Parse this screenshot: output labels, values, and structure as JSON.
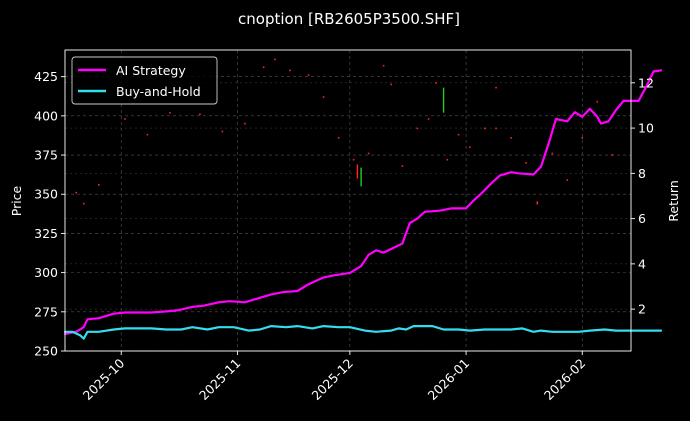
{
  "chart_data": {
    "type": "line",
    "title": "cnoption [RB2605P3500.SHF]",
    "ylabel_left": "Price",
    "ylabel_right": "Return",
    "ylim_left": [
      250,
      442
    ],
    "ylim_right": [
      0.15,
      13.45
    ],
    "xlim": [
      "2025-09-16",
      "2026-02-14"
    ],
    "yticks_left": [
      250,
      275,
      300,
      325,
      350,
      375,
      400,
      425
    ],
    "yticks_right": [
      2,
      4,
      6,
      8,
      10,
      12
    ],
    "xticks": [
      {
        "date": "2025-10-01",
        "label": "2025-10"
      },
      {
        "date": "2025-11-01",
        "label": "2025-11"
      },
      {
        "date": "2025-12-01",
        "label": "2025-12"
      },
      {
        "date": "2026-01-01",
        "label": "2026-01"
      },
      {
        "date": "2026-02-01",
        "label": "2026-02"
      }
    ],
    "grid": true,
    "legend_position": "top-left",
    "series": [
      {
        "name": "AI Strategy",
        "axis": "right",
        "color": "#ff00ff",
        "points": [
          [
            "2025-09-16",
            0.9
          ],
          [
            "2025-09-19",
            1.0
          ],
          [
            "2025-09-21",
            1.2
          ],
          [
            "2025-09-22",
            1.55
          ],
          [
            "2025-09-25",
            1.6
          ],
          [
            "2025-09-29",
            1.8
          ],
          [
            "2025-10-02",
            1.85
          ],
          [
            "2025-10-09",
            1.85
          ],
          [
            "2025-10-13",
            1.9
          ],
          [
            "2025-10-16",
            1.95
          ],
          [
            "2025-10-20",
            2.1
          ],
          [
            "2025-10-23",
            2.15
          ],
          [
            "2025-10-27",
            2.3
          ],
          [
            "2025-10-30",
            2.35
          ],
          [
            "2025-11-03",
            2.3
          ],
          [
            "2025-11-06",
            2.45
          ],
          [
            "2025-11-10",
            2.65
          ],
          [
            "2025-11-13",
            2.75
          ],
          [
            "2025-11-17",
            2.8
          ],
          [
            "2025-11-20",
            3.1
          ],
          [
            "2025-11-24",
            3.4
          ],
          [
            "2025-11-27",
            3.5
          ],
          [
            "2025-12-01",
            3.6
          ],
          [
            "2025-12-04",
            3.9
          ],
          [
            "2025-12-06",
            4.4
          ],
          [
            "2025-12-08",
            4.6
          ],
          [
            "2025-12-10",
            4.5
          ],
          [
            "2025-12-15",
            4.9
          ],
          [
            "2025-12-17",
            5.8
          ],
          [
            "2025-12-19",
            6.0
          ],
          [
            "2025-12-21",
            6.3
          ],
          [
            "2025-12-25",
            6.35
          ],
          [
            "2025-12-28",
            6.45
          ],
          [
            "2026-01-01",
            6.45
          ],
          [
            "2026-01-03",
            6.8
          ],
          [
            "2026-01-05",
            7.1
          ],
          [
            "2026-01-08",
            7.6
          ],
          [
            "2026-01-10",
            7.9
          ],
          [
            "2026-01-13",
            8.05
          ],
          [
            "2026-01-15",
            8.0
          ],
          [
            "2026-01-19",
            7.95
          ],
          [
            "2026-01-21",
            8.3
          ],
          [
            "2026-01-23",
            9.3
          ],
          [
            "2026-01-25",
            10.4
          ],
          [
            "2026-01-28",
            10.3
          ],
          [
            "2026-01-30",
            10.7
          ],
          [
            "2026-02-01",
            10.5
          ],
          [
            "2026-02-03",
            10.85
          ],
          [
            "2026-02-05",
            10.5
          ],
          [
            "2026-02-06",
            10.2
          ],
          [
            "2026-02-08",
            10.3
          ],
          [
            "2026-02-10",
            10.8
          ],
          [
            "2026-02-12",
            11.2
          ],
          [
            "2026-02-16",
            11.2
          ],
          [
            "2026-02-18",
            11.8
          ],
          [
            "2026-02-20",
            12.5
          ],
          [
            "2026-02-22",
            12.55
          ]
        ]
      },
      {
        "name": "Buy-and-Hold",
        "axis": "right",
        "color": "#33ddee",
        "points": [
          [
            "2025-09-16",
            1.0
          ],
          [
            "2025-09-18",
            1.0
          ],
          [
            "2025-09-20",
            0.85
          ],
          [
            "2025-09-21",
            0.7
          ],
          [
            "2025-09-22",
            1.0
          ],
          [
            "2025-09-25",
            1.0
          ],
          [
            "2025-09-29",
            1.1
          ],
          [
            "2025-10-02",
            1.15
          ],
          [
            "2025-10-09",
            1.15
          ],
          [
            "2025-10-13",
            1.1
          ],
          [
            "2025-10-17",
            1.1
          ],
          [
            "2025-10-20",
            1.2
          ],
          [
            "2025-10-24",
            1.1
          ],
          [
            "2025-10-27",
            1.2
          ],
          [
            "2025-10-31",
            1.2
          ],
          [
            "2025-11-04",
            1.05
          ],
          [
            "2025-11-07",
            1.1
          ],
          [
            "2025-11-10",
            1.25
          ],
          [
            "2025-11-14",
            1.2
          ],
          [
            "2025-11-17",
            1.25
          ],
          [
            "2025-11-21",
            1.15
          ],
          [
            "2025-11-24",
            1.25
          ],
          [
            "2025-11-28",
            1.2
          ],
          [
            "2025-12-01",
            1.2
          ],
          [
            "2025-12-05",
            1.05
          ],
          [
            "2025-12-08",
            1.0
          ],
          [
            "2025-12-12",
            1.05
          ],
          [
            "2025-12-14",
            1.15
          ],
          [
            "2025-12-16",
            1.1
          ],
          [
            "2025-12-18",
            1.25
          ],
          [
            "2025-12-21",
            1.25
          ],
          [
            "2025-12-23",
            1.25
          ],
          [
            "2025-12-26",
            1.1
          ],
          [
            "2025-12-30",
            1.1
          ],
          [
            "2026-01-02",
            1.05
          ],
          [
            "2026-01-06",
            1.1
          ],
          [
            "2026-01-10",
            1.1
          ],
          [
            "2026-01-13",
            1.1
          ],
          [
            "2026-01-16",
            1.15
          ],
          [
            "2026-01-19",
            1.0
          ],
          [
            "2026-01-21",
            1.05
          ],
          [
            "2026-01-24",
            1.0
          ],
          [
            "2026-01-27",
            1.0
          ],
          [
            "2026-01-31",
            1.0
          ],
          [
            "2026-02-03",
            1.05
          ],
          [
            "2026-02-07",
            1.1
          ],
          [
            "2026-02-10",
            1.05
          ],
          [
            "2026-02-14",
            1.05
          ],
          [
            "2026-02-17",
            1.05
          ],
          [
            "2026-02-20",
            1.05
          ],
          [
            "2026-02-22",
            1.05
          ]
        ]
      }
    ],
    "marks": {
      "green_bars": [
        {
          "date": "2025-12-04",
          "low": 355,
          "high": 367
        },
        {
          "date": "2025-12-26",
          "low": 402,
          "high": 418
        }
      ],
      "red_bars": [
        {
          "date": "2025-12-03",
          "low": 360,
          "high": 369
        }
      ],
      "red_dots": [
        [
          "2025-09-19",
          351
        ],
        [
          "2025-09-21",
          344
        ],
        [
          "2025-09-25",
          356
        ],
        [
          "2025-10-02",
          398
        ],
        [
          "2025-10-08",
          388
        ],
        [
          "2025-10-14",
          402
        ],
        [
          "2025-10-22",
          401
        ],
        [
          "2025-10-28",
          390
        ],
        [
          "2025-11-03",
          395
        ],
        [
          "2025-11-08",
          431
        ],
        [
          "2025-11-11",
          436
        ],
        [
          "2025-11-15",
          429
        ],
        [
          "2025-11-20",
          426
        ],
        [
          "2025-11-24",
          412
        ],
        [
          "2025-11-28",
          386
        ],
        [
          "2025-12-02",
          372
        ],
        [
          "2025-12-06",
          376
        ],
        [
          "2025-12-10",
          432
        ],
        [
          "2025-12-12",
          420
        ],
        [
          "2025-12-15",
          368
        ],
        [
          "2025-12-19",
          392
        ],
        [
          "2025-12-22",
          398
        ],
        [
          "2025-12-24",
          421
        ],
        [
          "2025-12-27",
          372
        ],
        [
          "2025-12-30",
          388
        ],
        [
          "2026-01-02",
          380
        ],
        [
          "2026-01-06",
          392
        ],
        [
          "2026-01-09",
          418
        ],
        [
          "2026-01-13",
          386
        ],
        [
          "2026-01-17",
          370
        ],
        [
          "2026-01-20",
          345
        ],
        [
          "2026-01-24",
          376
        ],
        [
          "2026-01-28",
          359
        ],
        [
          "2026-02-01",
          386
        ],
        [
          "2026-02-05",
          409
        ],
        [
          "2026-02-09",
          375
        ],
        [
          "2026-01-09",
          392
        ],
        [
          "2026-01-20",
          344
        ]
      ]
    },
    "legend": [
      {
        "label": "AI Strategy",
        "color": "#ff00ff"
      },
      {
        "label": "Buy-and-Hold",
        "color": "#33ddee"
      }
    ]
  }
}
